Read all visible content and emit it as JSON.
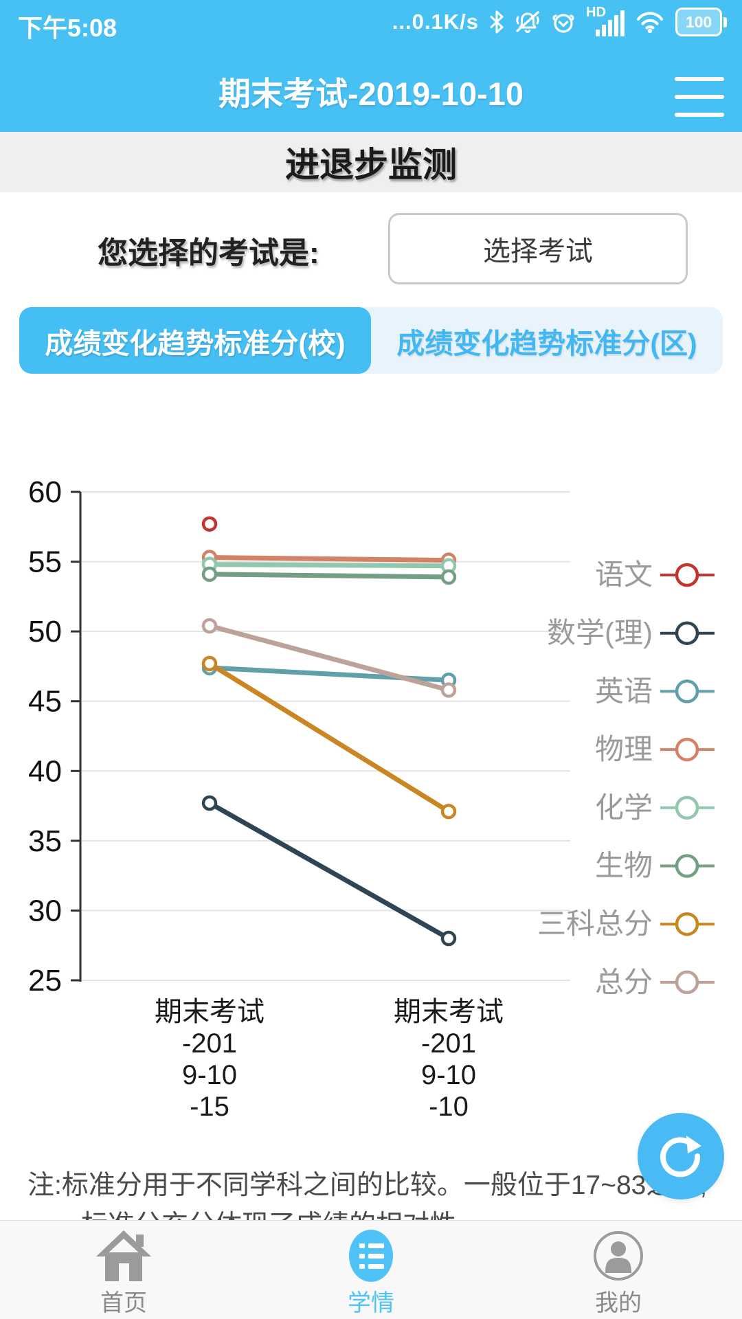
{
  "status_bar": {
    "time": "下午5:08",
    "network_speed": "...0.1K/s",
    "hd_label": "HD",
    "battery_level": "100",
    "icons": [
      "bluetooth-icon",
      "bell-muted-icon",
      "alarm-icon",
      "signal-bars-icon",
      "wifi-icon",
      "battery-icon"
    ]
  },
  "header": {
    "title": "期末考试-2019-10-10",
    "menu_icon": "hamburger-menu-icon"
  },
  "subheader": {
    "title": "进退步监测"
  },
  "exam_selector": {
    "label": "您选择的考试是:",
    "button_label": "选择考试"
  },
  "tabs": [
    {
      "label": "成绩变化趋势标准分(校)",
      "active": true
    },
    {
      "label": "成绩变化趋势标准分(区)",
      "active": false
    }
  ],
  "chart_data": {
    "type": "line",
    "categories": [
      "期末考试-2019-10-15",
      "期末考试-2019-10-10"
    ],
    "category_label_lines": [
      [
        "期末考试",
        "-201",
        "9-10",
        "-15"
      ],
      [
        "期末考试",
        "-201",
        "9-10",
        "-10"
      ]
    ],
    "ylim": [
      25,
      60
    ],
    "yticks": [
      25,
      30,
      35,
      40,
      45,
      50,
      55,
      60
    ],
    "grid": true,
    "legend_position": "right",
    "series": [
      {
        "name": "语文",
        "color": "#c23531",
        "values": [
          57.7,
          null
        ]
      },
      {
        "name": "数学(理)",
        "color": "#2f4554",
        "values": [
          37.7,
          28.0
        ]
      },
      {
        "name": "英语",
        "color": "#61a0a8",
        "values": [
          47.4,
          46.5
        ]
      },
      {
        "name": "物理",
        "color": "#d48265",
        "values": [
          55.3,
          55.1
        ]
      },
      {
        "name": "化学",
        "color": "#91c7ae",
        "values": [
          54.8,
          54.7
        ]
      },
      {
        "name": "生物",
        "color": "#749f83",
        "values": [
          54.1,
          53.9
        ]
      },
      {
        "name": "三科总分",
        "color": "#ca8622",
        "values": [
          47.7,
          37.1
        ]
      },
      {
        "name": "总分",
        "color": "#bda29a",
        "values": [
          50.4,
          45.8
        ]
      }
    ]
  },
  "note": {
    "line1": "注:标准分用于不同学科之间的比较。一般位于17~83之间,",
    "line2_partial": "……标准分充分体现了成绩的相对性……"
  },
  "refresh_button": {
    "icon": "refresh-icon"
  },
  "bottom_nav": [
    {
      "label": "首页",
      "icon": "home-icon",
      "active": false
    },
    {
      "label": "学情",
      "icon": "report-list-icon",
      "active": true
    },
    {
      "label": "我的",
      "icon": "profile-icon",
      "active": false
    }
  ]
}
